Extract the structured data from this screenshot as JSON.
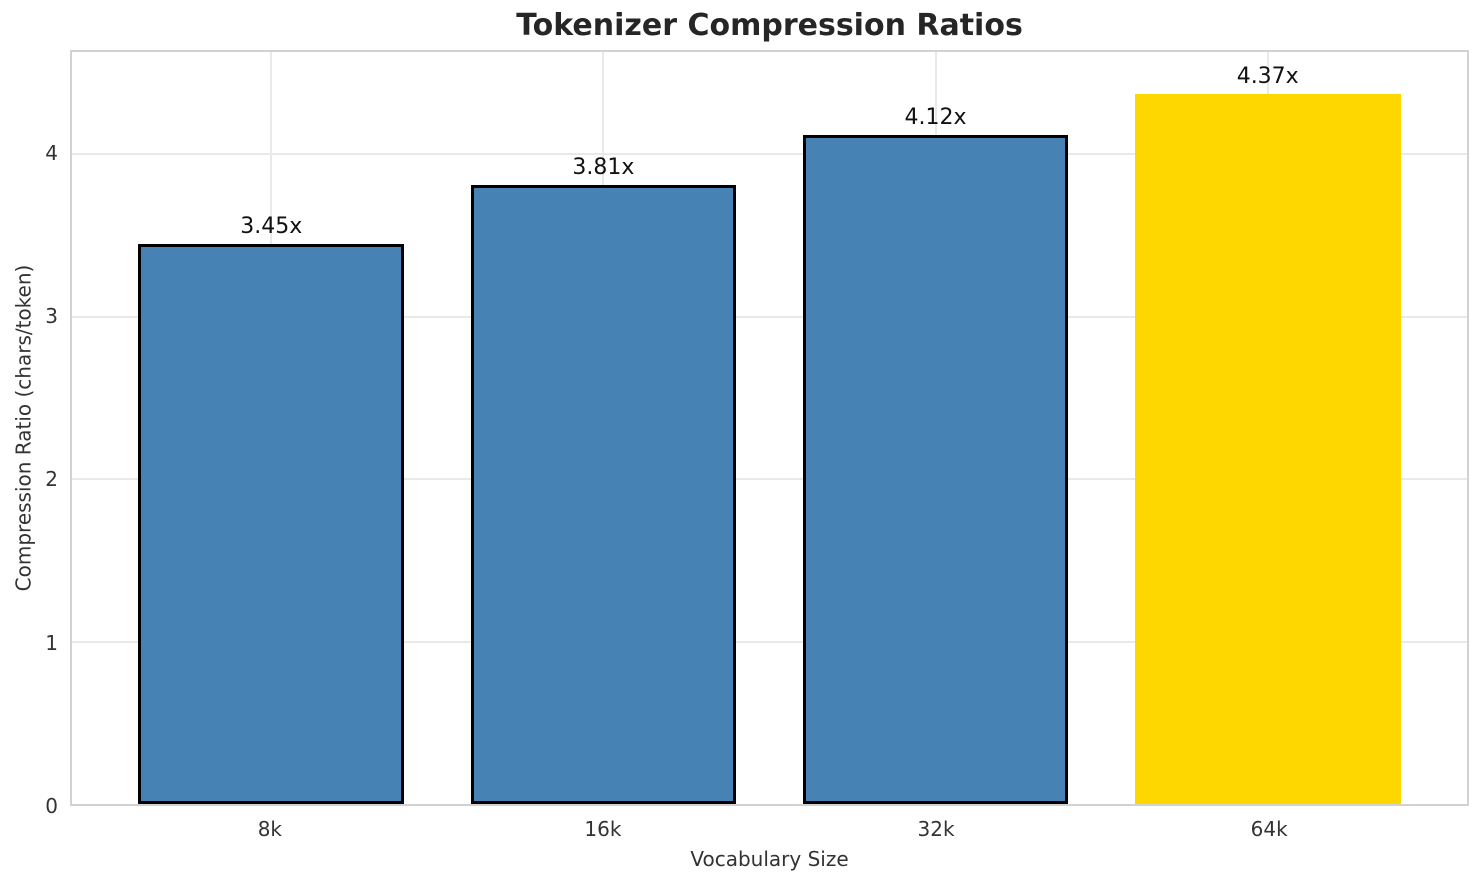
{
  "chart_data": {
    "type": "bar",
    "title": "Tokenizer Compression Ratios",
    "xlabel": "Vocabulary Size",
    "ylabel": "Compression Ratio (chars/token)",
    "categories": [
      "8k",
      "16k",
      "32k",
      "64k"
    ],
    "values": [
      3.45,
      3.81,
      4.12,
      4.37
    ],
    "bar_labels": [
      "3.45x",
      "3.81x",
      "4.12x",
      "4.37x"
    ],
    "yticks": [
      0,
      1,
      2,
      3,
      4
    ],
    "ylim": [
      0,
      4.63
    ],
    "xlim": [
      -0.6,
      3.6
    ],
    "bar_width": 0.8,
    "grid": true,
    "legend": "none",
    "highlight_index": 3,
    "colors": {
      "bar": "#4682B4",
      "highlight_bar": "#FFD700",
      "bar_edge": "#000000",
      "grid": "#e9e9e9",
      "spine": "#d2d2d2",
      "title_text": "#262626",
      "tick_text": "#333333",
      "value_text": "#111111"
    }
  }
}
